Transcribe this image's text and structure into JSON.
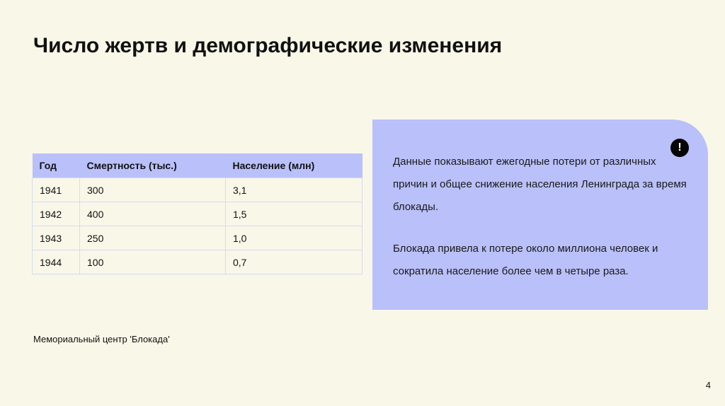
{
  "title": "Число жертв и демографические изменения",
  "table": {
    "headers": [
      "Год",
      "Смертность (тыс.)",
      "Население (млн)"
    ],
    "rows": [
      [
        "1941",
        "300",
        "3,1"
      ],
      [
        "1942",
        "400",
        "1,5"
      ],
      [
        "1943",
        "250",
        "1,0"
      ],
      [
        "1944",
        "100",
        "0,7"
      ]
    ]
  },
  "panel": {
    "icon": "exclamation-icon",
    "paragraph1": "Данные показывают ежегодные потери от различных причин и общее снижение населения Ленинграда за время блокады.",
    "paragraph2": "Блокада привела к потере около миллиона человек и сократила население более чем в четыре раза.",
    "alert_symbol": "!"
  },
  "source": "Мемориальный центр 'Блокада'",
  "page_number": "4",
  "colors": {
    "background": "#f9f7e8",
    "accent": "#b9c0fa"
  }
}
